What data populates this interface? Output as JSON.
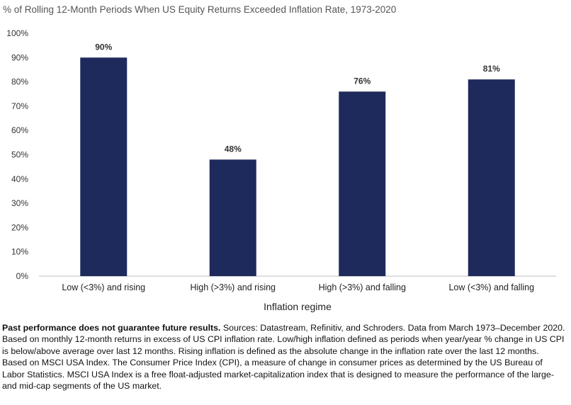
{
  "chart_data": {
    "type": "bar",
    "title": "% of Rolling 12-Month Periods When US Equity Returns Exceeded Inflation Rate, 1973-2020",
    "xlabel": "Inflation regime",
    "ylabel": "",
    "categories": [
      "Low (<3%) and rising",
      "High (>3%) and rising",
      "High (>3%) and falling",
      "Low (<3%) and falling"
    ],
    "values": [
      90,
      48,
      76,
      81
    ],
    "data_labels": [
      "90%",
      "48%",
      "76%",
      "81%"
    ],
    "ylim": [
      0,
      100
    ],
    "yticks": [
      "0%",
      "10%",
      "20%",
      "30%",
      "40%",
      "50%",
      "60%",
      "70%",
      "80%",
      "90%",
      "100%"
    ],
    "bar_color": "#1f2a5c",
    "grid": false,
    "legend": "none"
  },
  "footnote": {
    "bold": "Past performance does not guarantee future results.",
    "text": " Sources: Datastream, Refinitiv, and Schroders. Data from March 1973–December 2020. Based on monthly 12-month returns in excess of US CPI inflation rate. Low/high inflation defined as periods when year/year % change in US CPI is below/above average over last 12 months. Rising inflation is defined as the absolute change in the inflation rate over the last 12 months. Based on MSCI USA Index. The Consumer Price Index (CPI), a measure of change in consumer prices as determined by the US Bureau of Labor Statistics. MSCI USA Index is a free float-adjusted market-capitalization index that is designed to measure the performance of the large- and mid-cap segments of the US market."
  }
}
